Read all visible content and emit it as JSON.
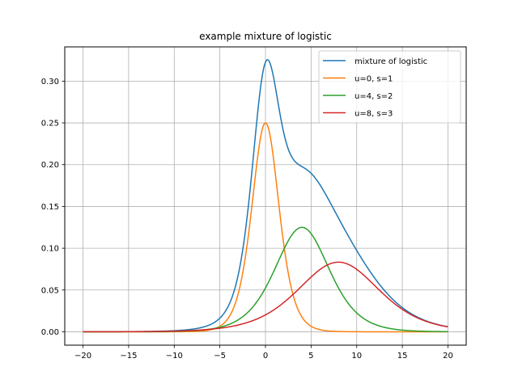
{
  "chart_data": {
    "type": "line",
    "title": "example mixture of logistic",
    "xlabel": "",
    "ylabel": "",
    "xlim": [
      -22,
      22
    ],
    "ylim": [
      -0.016,
      0.341
    ],
    "xticks": [
      -20,
      -15,
      -10,
      -5,
      0,
      5,
      10,
      15,
      20
    ],
    "xtick_labels": [
      "−20",
      "−15",
      "−10",
      "−5",
      "0",
      "5",
      "10",
      "15",
      "20"
    ],
    "yticks": [
      0.0,
      0.05,
      0.1,
      0.15,
      0.2,
      0.25,
      0.3
    ],
    "ytick_labels": [
      "0.00",
      "0.05",
      "0.10",
      "0.15",
      "0.20",
      "0.25",
      "0.30"
    ],
    "grid": true,
    "legend_position": "top-right",
    "x_domain": [
      -20,
      20
    ],
    "series": [
      {
        "name": "mixture of logistic",
        "color": "#1f77b4",
        "kind": "mixture"
      },
      {
        "name": "u=0, s=1",
        "color": "#ff7f0e",
        "kind": "logistic",
        "u": 0,
        "s": 1
      },
      {
        "name": "u=4, s=2",
        "color": "#2ca02c",
        "kind": "logistic",
        "u": 4,
        "s": 2
      },
      {
        "name": "u=8, s=3",
        "color": "#d62728",
        "kind": "logistic",
        "u": 8,
        "s": 3
      }
    ]
  }
}
